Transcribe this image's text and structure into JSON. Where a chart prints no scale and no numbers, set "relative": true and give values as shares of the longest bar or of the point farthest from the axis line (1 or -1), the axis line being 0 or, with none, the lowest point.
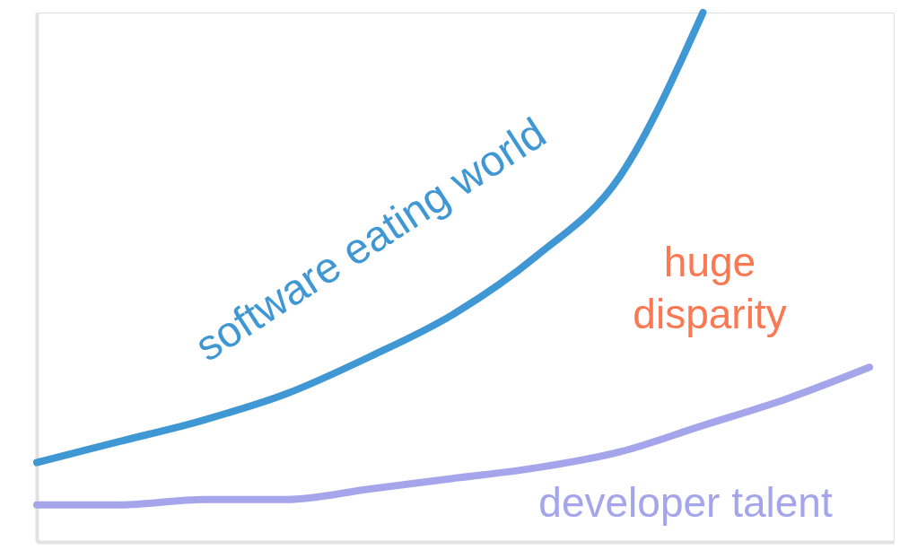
{
  "chart_data": {
    "type": "line",
    "relative": true,
    "legend": false,
    "grid": false,
    "tick_labels": false,
    "marker": "none",
    "line_style": "solid",
    "categories": [
      null,
      null,
      null,
      null,
      null,
      null,
      null,
      null,
      null,
      null,
      null
    ],
    "series": [
      {
        "name": "software eating world",
        "color": "#3f97d4",
        "values": [
          0.15,
          0.19,
          0.23,
          0.28,
          0.35,
          0.43,
          0.54,
          0.69,
          1.0,
          null,
          null
        ]
      },
      {
        "name": "developer talent",
        "color": "#a4a5ea",
        "values": [
          0.07,
          0.07,
          0.08,
          0.08,
          0.1,
          0.12,
          0.14,
          0.17,
          0.22,
          0.27,
          0.33
        ]
      }
    ],
    "annotations": [
      "huge disparity"
    ]
  }
}
